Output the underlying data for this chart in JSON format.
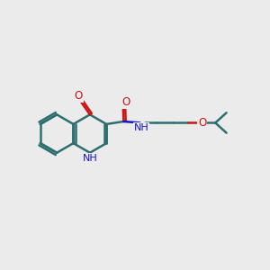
{
  "background_color": "#ebebeb",
  "bond_color": "#2d6e6e",
  "nitrogen_color": "#1414cc",
  "oxygen_color": "#cc1414",
  "line_width": 1.8,
  "figsize": [
    3.0,
    3.0
  ],
  "dpi": 100,
  "xlim": [
    0.0,
    10.0
  ],
  "ylim": [
    2.5,
    7.5
  ]
}
